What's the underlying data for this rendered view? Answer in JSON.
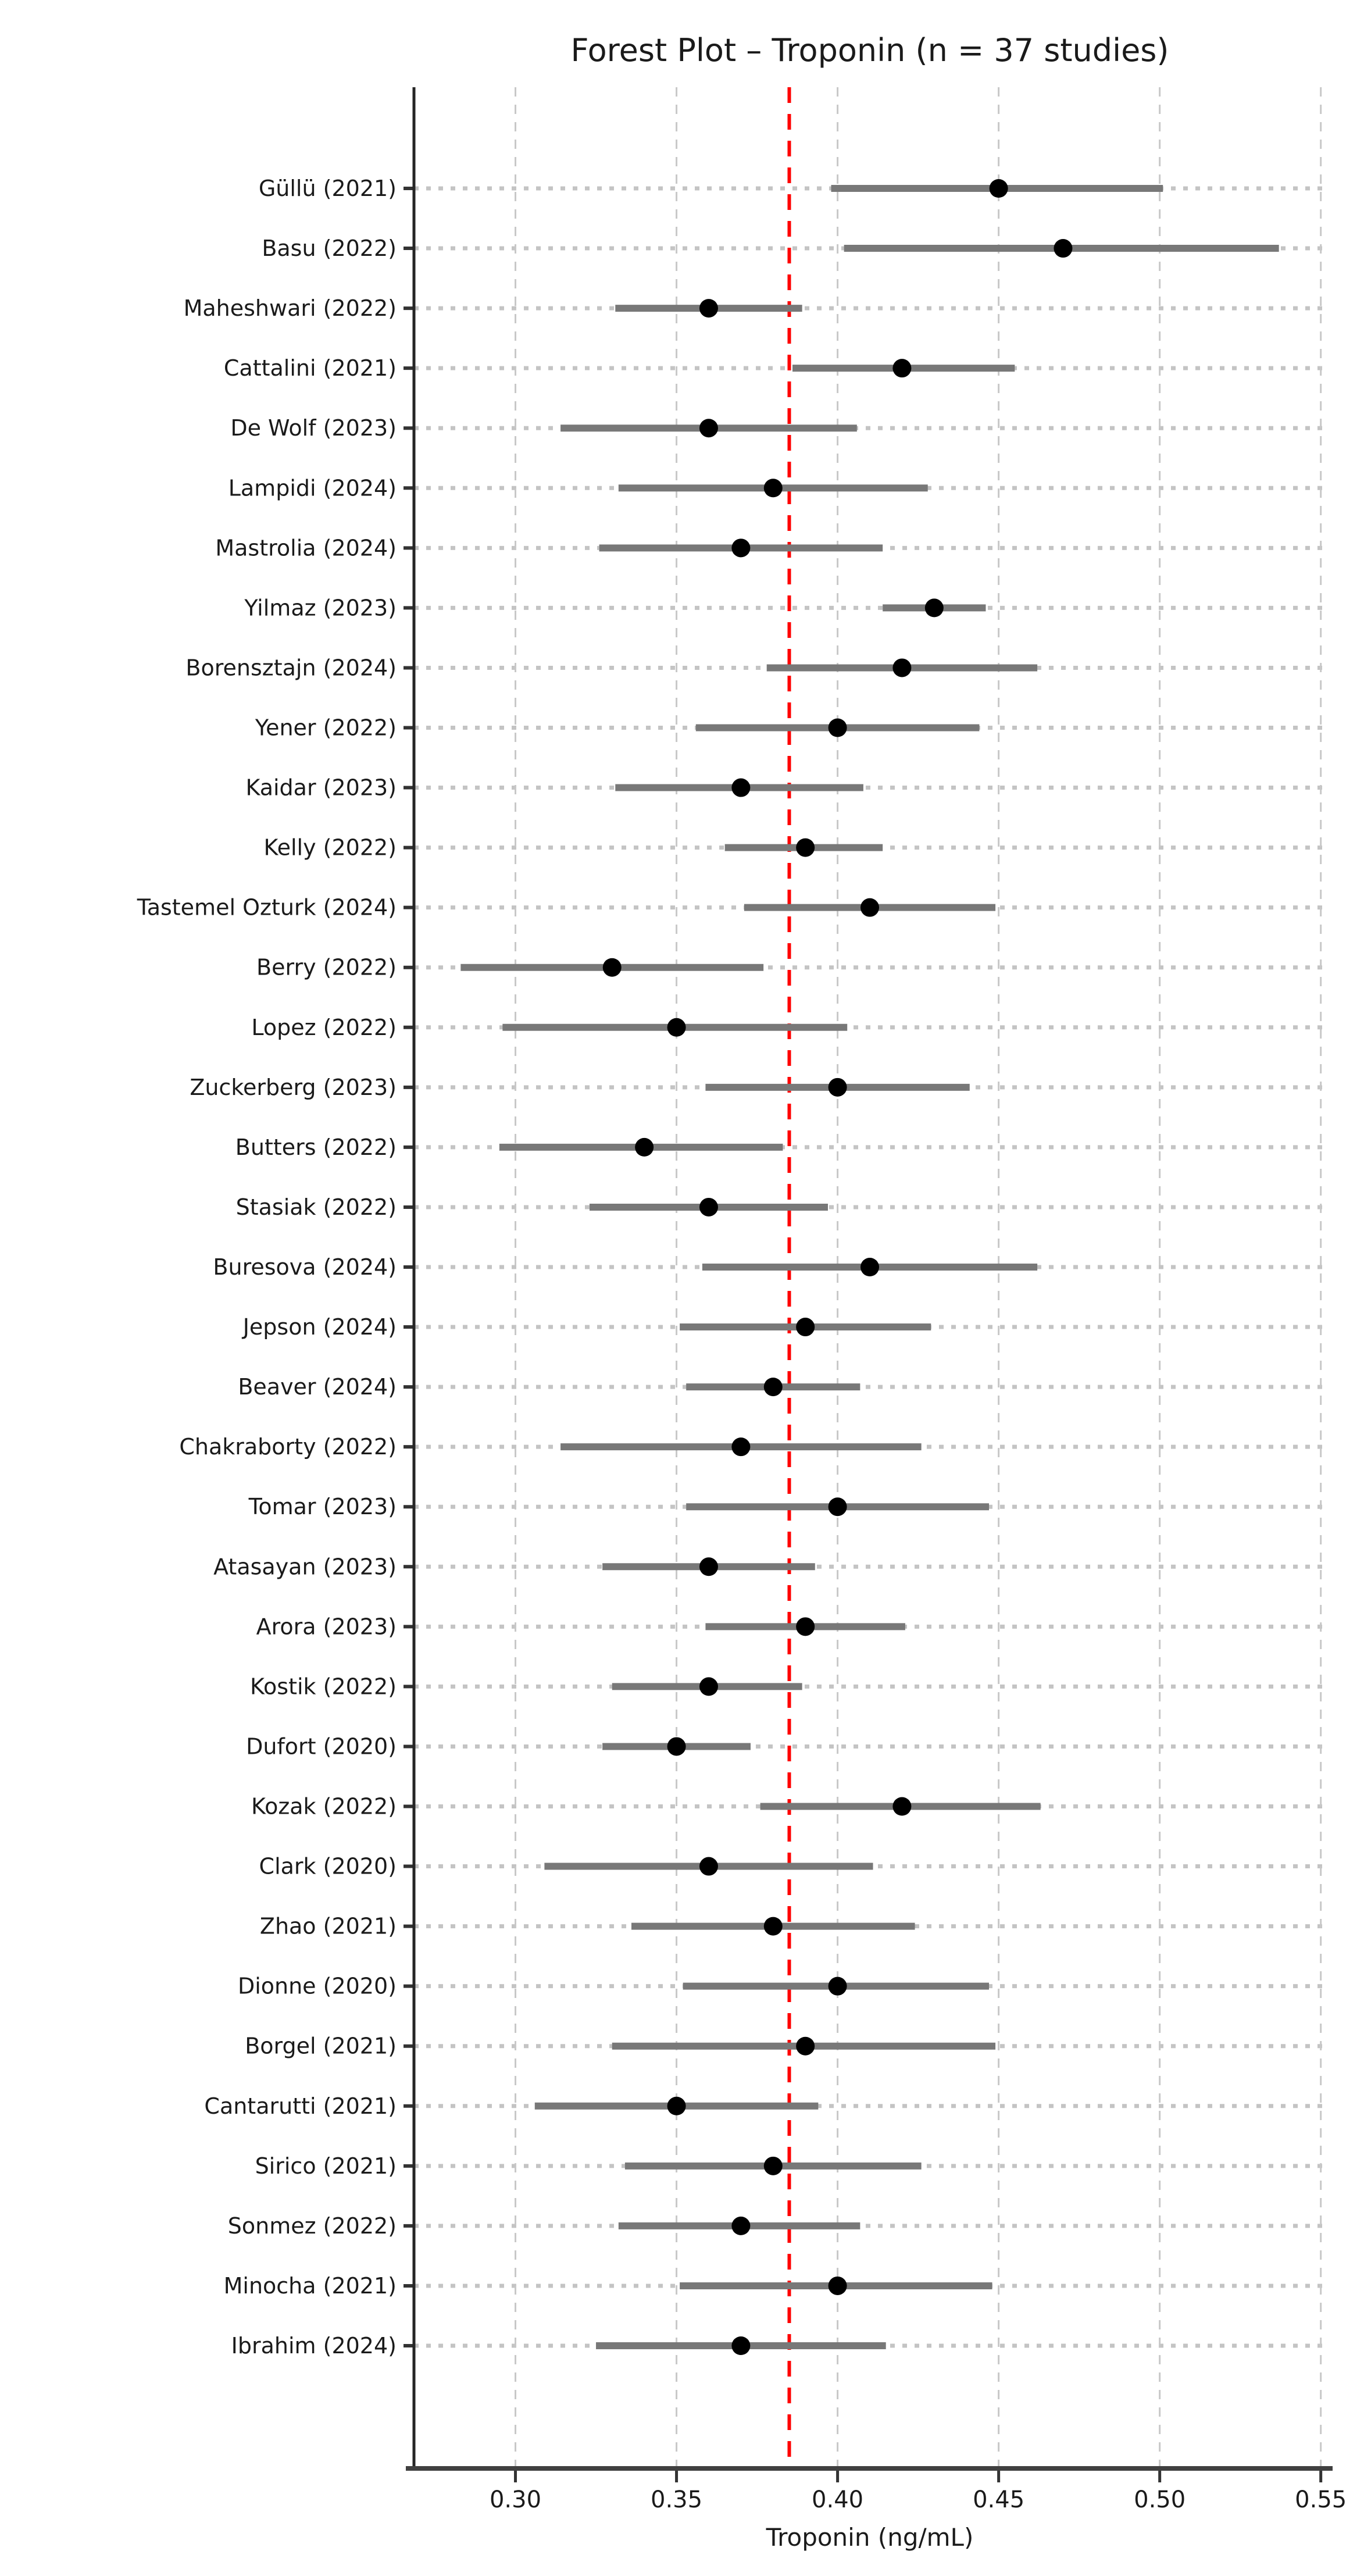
{
  "title": "Forest Plot – Troponin (n = 37 studies)",
  "colors": {
    "reference_line": "#ff0000",
    "ci_bar": "#787878",
    "marker": "#000000",
    "vertical_grid": "#c8c8c8",
    "row_guide": "#c4c4c4",
    "spine": "#333333",
    "text": "#1a1a1a"
  },
  "chart_data": {
    "type": "scatter",
    "subtype": "forest-plot",
    "title": "Forest Plot – Troponin (n = 37 studies)",
    "xlabel": "Troponin (ng/mL)",
    "ylabel": "",
    "xlim": [
      0.2685,
      0.5515
    ],
    "x_ticks": [
      0.3,
      0.35,
      0.4,
      0.45,
      0.5,
      0.55
    ],
    "x_tick_labels": [
      "0.30",
      "0.35",
      "0.40",
      "0.45",
      "0.50",
      "0.55"
    ],
    "grid": true,
    "legend": "none",
    "pooled_reference_line": 0.385,
    "n_studies": 37,
    "studies": [
      {
        "label": "Güllü (2021)",
        "value": 0.45,
        "ci_low": 0.398,
        "ci_high": 0.501
      },
      {
        "label": "Basu (2022)",
        "value": 0.47,
        "ci_low": 0.402,
        "ci_high": 0.537
      },
      {
        "label": "Maheshwari (2022)",
        "value": 0.36,
        "ci_low": 0.331,
        "ci_high": 0.389
      },
      {
        "label": "Cattalini (2021)",
        "value": 0.42,
        "ci_low": 0.386,
        "ci_high": 0.455
      },
      {
        "label": "De Wolf (2023)",
        "value": 0.36,
        "ci_low": 0.314,
        "ci_high": 0.406
      },
      {
        "label": "Lampidi (2024)",
        "value": 0.38,
        "ci_low": 0.332,
        "ci_high": 0.428
      },
      {
        "label": "Mastrolia (2024)",
        "value": 0.37,
        "ci_low": 0.326,
        "ci_high": 0.414
      },
      {
        "label": "Yilmaz (2023)",
        "value": 0.43,
        "ci_low": 0.414,
        "ci_high": 0.446
      },
      {
        "label": "Borensztajn (2024)",
        "value": 0.42,
        "ci_low": 0.378,
        "ci_high": 0.462
      },
      {
        "label": "Yener (2022)",
        "value": 0.4,
        "ci_low": 0.356,
        "ci_high": 0.444
      },
      {
        "label": "Kaidar (2023)",
        "value": 0.37,
        "ci_low": 0.331,
        "ci_high": 0.408
      },
      {
        "label": "Kelly (2022)",
        "value": 0.39,
        "ci_low": 0.365,
        "ci_high": 0.414
      },
      {
        "label": "Tastemel Ozturk (2024)",
        "value": 0.41,
        "ci_low": 0.371,
        "ci_high": 0.449
      },
      {
        "label": "Berry (2022)",
        "value": 0.33,
        "ci_low": 0.283,
        "ci_high": 0.377
      },
      {
        "label": "Lopez (2022)",
        "value": 0.35,
        "ci_low": 0.296,
        "ci_high": 0.403
      },
      {
        "label": "Zuckerberg (2023)",
        "value": 0.4,
        "ci_low": 0.359,
        "ci_high": 0.441
      },
      {
        "label": "Butters (2022)",
        "value": 0.34,
        "ci_low": 0.295,
        "ci_high": 0.383
      },
      {
        "label": "Stasiak (2022)",
        "value": 0.36,
        "ci_low": 0.323,
        "ci_high": 0.397
      },
      {
        "label": "Buresova (2024)",
        "value": 0.41,
        "ci_low": 0.358,
        "ci_high": 0.462
      },
      {
        "label": "Jepson (2024)",
        "value": 0.39,
        "ci_low": 0.351,
        "ci_high": 0.429
      },
      {
        "label": "Beaver (2024)",
        "value": 0.38,
        "ci_low": 0.353,
        "ci_high": 0.407
      },
      {
        "label": "Chakraborty (2022)",
        "value": 0.37,
        "ci_low": 0.314,
        "ci_high": 0.426
      },
      {
        "label": "Tomar (2023)",
        "value": 0.4,
        "ci_low": 0.353,
        "ci_high": 0.447
      },
      {
        "label": "Atasayan (2023)",
        "value": 0.36,
        "ci_low": 0.327,
        "ci_high": 0.393
      },
      {
        "label": "Arora (2023)",
        "value": 0.39,
        "ci_low": 0.359,
        "ci_high": 0.421
      },
      {
        "label": "Kostik (2022)",
        "value": 0.36,
        "ci_low": 0.33,
        "ci_high": 0.389
      },
      {
        "label": "Dufort (2020)",
        "value": 0.35,
        "ci_low": 0.327,
        "ci_high": 0.373
      },
      {
        "label": "Kozak (2022)",
        "value": 0.42,
        "ci_low": 0.376,
        "ci_high": 0.463
      },
      {
        "label": "Clark (2020)",
        "value": 0.36,
        "ci_low": 0.309,
        "ci_high": 0.411
      },
      {
        "label": "Zhao (2021)",
        "value": 0.38,
        "ci_low": 0.336,
        "ci_high": 0.424
      },
      {
        "label": "Dionne (2020)",
        "value": 0.4,
        "ci_low": 0.352,
        "ci_high": 0.447
      },
      {
        "label": "Borgel (2021)",
        "value": 0.39,
        "ci_low": 0.33,
        "ci_high": 0.449
      },
      {
        "label": "Cantarutti (2021)",
        "value": 0.35,
        "ci_low": 0.306,
        "ci_high": 0.394
      },
      {
        "label": "Sirico (2021)",
        "value": 0.38,
        "ci_low": 0.334,
        "ci_high": 0.426
      },
      {
        "label": "Sonmez (2022)",
        "value": 0.37,
        "ci_low": 0.332,
        "ci_high": 0.407
      },
      {
        "label": "Minocha (2021)",
        "value": 0.4,
        "ci_low": 0.351,
        "ci_high": 0.448
      },
      {
        "label": "Ibrahim (2024)",
        "value": 0.37,
        "ci_low": 0.325,
        "ci_high": 0.415
      }
    ]
  }
}
